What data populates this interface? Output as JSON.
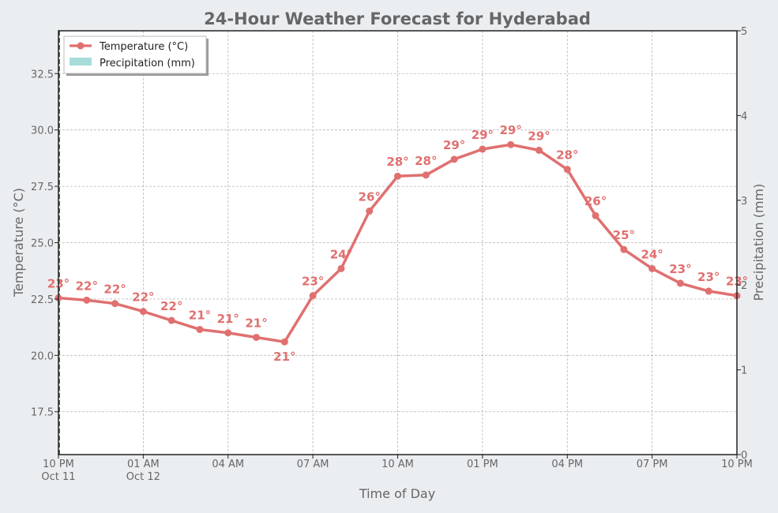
{
  "chart_data": {
    "type": "line",
    "title": "24-Hour Weather Forecast for Hyderabad",
    "xlabel": "Time of Day",
    "ylabel": "Temperature (°C)",
    "y2label": "Precipitation (mm)",
    "ylim": [
      15.6,
      34.4
    ],
    "y2lim": [
      0,
      5
    ],
    "yticks": [
      17.5,
      20.0,
      22.5,
      25.0,
      27.5,
      30.0,
      32.5
    ],
    "ytick_labels": [
      "17.5",
      "20.0",
      "22.5",
      "25.0",
      "27.5",
      "30.0",
      "32.5"
    ],
    "y2ticks": [
      0,
      1,
      2,
      3,
      4,
      5
    ],
    "y2tick_labels": [
      "0",
      "1",
      "2",
      "3",
      "4",
      "5"
    ],
    "xlim": [
      0,
      24
    ],
    "xticks": [
      0,
      3,
      6,
      9,
      12,
      15,
      18,
      21,
      24
    ],
    "xtick_labels": [
      [
        "10 PM",
        "Oct 11"
      ],
      [
        "01 AM",
        "Oct 12"
      ],
      [
        "04 AM"
      ],
      [
        "07 AM"
      ],
      [
        "10 AM"
      ],
      [
        "01 PM"
      ],
      [
        "04 PM"
      ],
      [
        "07 PM"
      ],
      [
        "10 PM"
      ]
    ],
    "grid": true,
    "legend_position": "top-left",
    "legend": [
      "Temperature (°C)",
      "Precipitation (mm)"
    ],
    "series": [
      {
        "name": "Temperature (°C)",
        "color": "#e07070",
        "x": [
          0,
          1,
          2,
          3,
          4,
          5,
          6,
          7,
          8,
          9,
          10,
          11,
          12,
          13,
          14,
          15,
          16,
          17,
          18,
          19,
          20,
          21,
          22,
          23,
          24
        ],
        "values": [
          22.55,
          22.45,
          22.3,
          21.95,
          21.55,
          21.15,
          21.0,
          20.8,
          20.6,
          22.65,
          23.85,
          26.4,
          27.95,
          28.0,
          28.7,
          29.15,
          29.35,
          29.1,
          28.25,
          26.2,
          24.7,
          23.85,
          23.2,
          22.85,
          22.65
        ],
        "labels": [
          "23°",
          "22°",
          "22°",
          "22°",
          "22°",
          "21°",
          "21°",
          "21°",
          "21°",
          "23°",
          "24°",
          "26°",
          "28°",
          "28°",
          "29°",
          "29°",
          "29°",
          "29°",
          "28°",
          "26°",
          "25°",
          "24°",
          "23°",
          "23°",
          "23°"
        ],
        "label_below": [
          8
        ]
      },
      {
        "name": "Precipitation (mm)",
        "color": "#a8dcd9",
        "type": "bar",
        "values": []
      }
    ],
    "vline": {
      "x": 0,
      "color": "#2f7d2f",
      "style": "dashed"
    }
  }
}
